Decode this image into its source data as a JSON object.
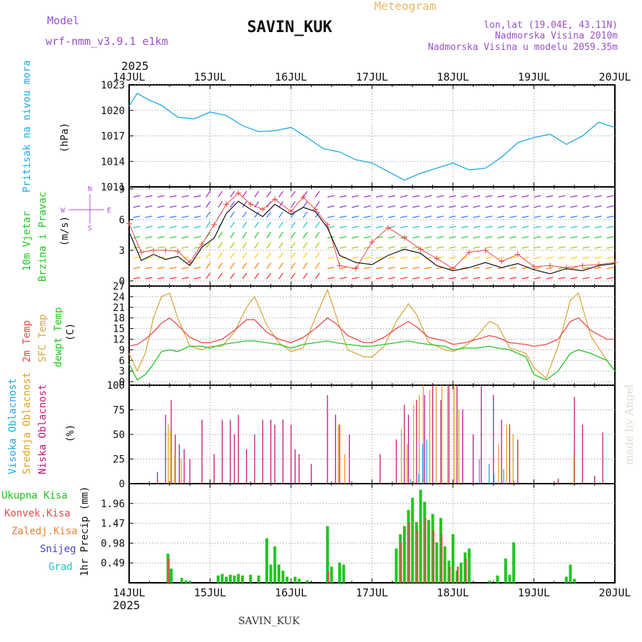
{
  "header": {
    "model_label": "Model",
    "model_name": "wrf-nmm_v3.9.1 e1km",
    "station_title": "SAVIN_KUK",
    "meteogram_label": "Meteogram",
    "lonlat": "lon,lat (19.04E, 43.11N)",
    "altitude": "Nadmorska Visina 2010m",
    "model_altitude": "Nadmorska Visina u modelu 2059.35m",
    "year_top": "2025",
    "year_bottom": "2025",
    "footer_station": "SAVIN_KUK",
    "watermark": "made by Angel"
  },
  "colors": {
    "pressure": "#1ea9e0",
    "wind_label": "#22c522",
    "dir_label": "#b44fd8",
    "temp2m": "#e84a4a",
    "sfc": "#d8a840",
    "dewpt": "#22c522",
    "high_cloud": "#21a9e0",
    "mid_cloud": "#e0a020",
    "low_cloud": "#c01878",
    "total_precip": "#22c522",
    "conv_precip": "#e84a4a",
    "frozen_precip": "#f08030",
    "snow": "#4040e0",
    "hail": "#20c0c0",
    "title_purple": "#9a50c8",
    "meteogram_orange": "#e8b868"
  },
  "chart_data": [
    {
      "type": "line",
      "id": "pressure",
      "ylabel_1": "Pritisak na nivou mora",
      "ylabel_2": "(hPa)",
      "ylim": [
        1011,
        1023
      ],
      "yticks": [
        1011,
        1014,
        1017,
        1020,
        1023
      ],
      "x_days": [
        "14JUL",
        "15JUL",
        "16JUL",
        "17JUL",
        "18JUL",
        "19JUL",
        "20JUL"
      ],
      "x": [
        0,
        0.1,
        0.25,
        0.4,
        0.6,
        0.8,
        1.0,
        1.2,
        1.4,
        1.6,
        1.8,
        2.0,
        2.2,
        2.4,
        2.6,
        2.8,
        3.0,
        3.2,
        3.4,
        3.6,
        3.8,
        4.0,
        4.2,
        4.4,
        4.6,
        4.8,
        5.0,
        5.2,
        5.4,
        5.6,
        5.8,
        6.0
      ],
      "y": [
        1020.5,
        1022.0,
        1021.2,
        1020.6,
        1019.2,
        1019.0,
        1019.8,
        1019.4,
        1018.2,
        1017.5,
        1017.6,
        1018.0,
        1016.8,
        1015.5,
        1015.1,
        1014.2,
        1013.8,
        1012.8,
        1011.8,
        1012.6,
        1013.2,
        1013.8,
        1013.0,
        1013.2,
        1014.5,
        1016.2,
        1016.8,
        1017.2,
        1016.0,
        1017.0,
        1018.6,
        1018.0
      ]
    },
    {
      "type": "line",
      "id": "wind",
      "ylabel_1": "10m Vjetar",
      "ylabel_2": "Brzina i Pravac",
      "ylabel_3": "(m/s)",
      "compass": {
        "n": "N",
        "s": "S",
        "w": "W",
        "e": "E"
      },
      "ylim": [
        -0.5,
        9.2
      ],
      "yticks": [
        0,
        3,
        6,
        9
      ],
      "x": [
        0,
        0.15,
        0.3,
        0.45,
        0.6,
        0.75,
        0.9,
        1.05,
        1.2,
        1.35,
        1.5,
        1.65,
        1.8,
        2.0,
        2.15,
        2.3,
        2.45,
        2.6,
        2.8,
        3.0,
        3.2,
        3.4,
        3.6,
        3.8,
        4.0,
        4.2,
        4.4,
        4.6,
        4.8,
        5.0,
        5.2,
        5.4,
        5.6,
        5.8,
        6.0
      ],
      "y_speed": [
        4.8,
        2.0,
        2.6,
        2.1,
        2.4,
        1.5,
        3.3,
        4.2,
        6.6,
        7.8,
        7.0,
        6.3,
        7.5,
        6.5,
        7.2,
        6.8,
        5.2,
        2.5,
        1.8,
        1.6,
        2.5,
        3.1,
        2.7,
        1.5,
        1.0,
        1.3,
        1.8,
        1.3,
        1.7,
        1.1,
        0.7,
        1.2,
        1.0,
        1.5,
        1.7
      ],
      "y_gust": [
        5.6,
        2.8,
        3.0,
        3.0,
        2.9,
        1.8,
        3.6,
        5.5,
        7.5,
        8.6,
        7.5,
        7.0,
        8.0,
        6.8,
        8.2,
        7.0,
        5.5,
        1.5,
        1.2,
        3.8,
        5.2,
        4.2,
        3.1,
        2.2,
        1.2,
        2.8,
        3.0,
        1.9,
        2.6,
        1.4,
        1.5,
        1.3,
        1.5,
        1.6,
        1.8
      ]
    },
    {
      "type": "line",
      "id": "temperature",
      "ylabel_1": "2m Temp",
      "ylabel_2": "SFC Temp",
      "ylabel_3": "dewpt Temp",
      "ylabel_4": "(C)",
      "ylim": [
        -1,
        27
      ],
      "yticks": [
        0,
        3,
        6,
        9,
        12,
        15,
        18,
        21,
        24,
        27
      ],
      "x": [
        0,
        0.1,
        0.2,
        0.3,
        0.4,
        0.5,
        0.6,
        0.75,
        0.9,
        1.0,
        1.15,
        1.3,
        1.45,
        1.55,
        1.7,
        1.85,
        2.0,
        2.15,
        2.3,
        2.45,
        2.55,
        2.7,
        2.9,
        3.0,
        3.15,
        3.3,
        3.45,
        3.55,
        3.7,
        3.9,
        4.0,
        4.15,
        4.3,
        4.45,
        4.55,
        4.7,
        4.9,
        5.0,
        5.15,
        5.3,
        5.45,
        5.55,
        5.7,
        5.9,
        6.0
      ],
      "t2m": [
        10,
        10.5,
        12,
        14,
        16.5,
        18,
        16,
        12.5,
        11,
        11,
        12,
        14.5,
        17.5,
        17.5,
        14,
        12,
        11,
        12.5,
        15,
        18,
        16.5,
        13,
        11,
        11,
        12.5,
        15,
        17,
        15.5,
        12.5,
        11.5,
        10.5,
        11,
        12,
        13,
        12.5,
        11,
        10.5,
        10,
        10.5,
        12,
        17,
        18,
        14.5,
        12,
        12
      ],
      "sfc": [
        8,
        3,
        8,
        18,
        24,
        25,
        18,
        10,
        9,
        10,
        10,
        14,
        21,
        24,
        16,
        11,
        8.5,
        9.5,
        18,
        26,
        19,
        9,
        7,
        7,
        10,
        17,
        22,
        19,
        11,
        9,
        8.5,
        10,
        13,
        17,
        16,
        9.5,
        8,
        4,
        1,
        10,
        23,
        25,
        13,
        6,
        3
      ],
      "dew": [
        5,
        0.5,
        2,
        5,
        8.5,
        9,
        8.5,
        10,
        10,
        9.5,
        10.5,
        11,
        11.5,
        11.5,
        11,
        10.5,
        9.5,
        10.5,
        11,
        11.5,
        11,
        10.5,
        10,
        10,
        10.5,
        11,
        11.5,
        11,
        10.5,
        10,
        9,
        9.5,
        9.5,
        10,
        9.5,
        9,
        7,
        2,
        0.5,
        3,
        8,
        9,
        8,
        6,
        3
      ]
    },
    {
      "type": "bar",
      "id": "clouds",
      "ylabel_1": "Visoka Oblacnost",
      "ylabel_2": "Srednja Oblacnost",
      "ylabel_3": "Niska Oblacnost",
      "ylabel_4": "(%)",
      "ylim": [
        0,
        100
      ],
      "yticks": [
        0,
        25,
        50,
        75,
        100
      ],
      "series": [
        {
          "name": "Niska Oblacnost",
          "x": [
            0.35,
            0.45,
            0.52,
            0.57,
            0.62,
            0.68,
            0.75,
            0.9,
            1.05,
            1.15,
            1.25,
            1.3,
            1.35,
            1.45,
            1.55,
            1.65,
            1.75,
            1.8,
            1.9,
            2.0,
            2.05,
            2.1,
            2.25,
            2.45,
            2.55,
            2.6,
            2.72,
            3.1,
            3.3,
            3.4,
            3.45,
            3.55,
            3.65,
            3.75,
            3.85,
            3.95,
            4.05,
            4.12,
            4.25,
            4.35,
            4.5,
            4.6,
            4.7,
            4.8,
            5.3,
            5.5,
            5.6,
            5.75,
            5.85
          ],
          "values": [
            12,
            70,
            85,
            50,
            40,
            35,
            25,
            65,
            30,
            65,
            65,
            50,
            70,
            35,
            50,
            65,
            65,
            60,
            65,
            60,
            35,
            30,
            20,
            90,
            70,
            60,
            50,
            30,
            45,
            80,
            70,
            85,
            90,
            100,
            85,
            100,
            100,
            75,
            50,
            100,
            90,
            65,
            60,
            45,
            5,
            88,
            60,
            8,
            52
          ]
        },
        {
          "name": "Srednja Oblacnost",
          "x": [
            0.47,
            0.5,
            0.55,
            0.63,
            2.57,
            2.65,
            3.35,
            3.42,
            3.5,
            3.57,
            3.62,
            3.7,
            3.78,
            3.85,
            3.92,
            4.0,
            4.06,
            4.55,
            4.65,
            4.73,
            5.48
          ],
          "values": [
            60,
            55,
            30,
            25,
            60,
            30,
            55,
            40,
            80,
            90,
            100,
            95,
            100,
            100,
            100,
            100,
            75,
            40,
            60,
            50,
            30
          ]
        },
        {
          "name": "Visoka Oblacnost",
          "x": [
            3.45,
            3.55,
            3.6,
            3.65,
            4.3,
            4.42,
            4.48,
            4.6
          ],
          "values": [
            5,
            10,
            40,
            45,
            25,
            20,
            10,
            15
          ]
        }
      ]
    },
    {
      "type": "bar",
      "id": "precip",
      "ylabel_1": "Ukupna Kisa",
      "ylabel_2": "Konvek.Kisa",
      "ylabel_3": "Zaledj.Kisa",
      "ylabel_4": "Snijeg",
      "ylabel_5": "Grad",
      "ylabel_6": "1hr Precip (mm)",
      "ylim": [
        0,
        2.45
      ],
      "yticks": [
        0.49,
        0.98,
        1.47,
        1.96
      ],
      "yticklabels": [
        "0.49",
        "0.98",
        "1.47",
        "1.96"
      ],
      "series": [
        {
          "name": "Ukupna Kisa",
          "x": [
            0.48,
            0.52,
            0.65,
            0.7,
            0.75,
            1.1,
            1.15,
            1.2,
            1.25,
            1.3,
            1.35,
            1.4,
            1.5,
            1.6,
            1.7,
            1.75,
            1.8,
            1.85,
            1.9,
            1.95,
            2.05,
            2.1,
            2.2,
            2.45,
            2.5,
            2.6,
            2.65,
            3.3,
            3.35,
            3.4,
            3.45,
            3.5,
            3.55,
            3.6,
            3.65,
            3.7,
            3.75,
            3.8,
            3.85,
            3.9,
            3.95,
            4.0,
            4.05,
            4.1,
            4.15,
            4.2,
            4.45,
            4.55,
            4.65,
            4.7,
            4.75,
            5.4,
            5.45,
            5.5
          ],
          "values": [
            0.72,
            0.35,
            0.12,
            0.06,
            0.05,
            0.18,
            0.22,
            0.15,
            0.2,
            0.18,
            0.22,
            0.18,
            0.2,
            0.18,
            1.1,
            0.45,
            0.9,
            0.45,
            0.3,
            0.15,
            0.15,
            0.1,
            0.06,
            1.4,
            0.4,
            0.5,
            0.45,
            0.85,
            1.2,
            1.4,
            1.8,
            2.1,
            1.5,
            2.3,
            2.0,
            1.55,
            1.7,
            1.0,
            1.6,
            0.9,
            0.55,
            1.2,
            0.3,
            0.5,
            0.75,
            0.85,
            0.05,
            0.18,
            0.6,
            0.2,
            1.0,
            0.15,
            0.45,
            0.1
          ]
        },
        {
          "name": "Konvek.Kisa",
          "x": [
            0.49,
            2.46,
            3.36,
            3.46,
            3.56,
            3.66,
            3.76,
            3.86,
            3.96,
            4.06,
            4.16
          ],
          "values": [
            0.6,
            0.3,
            1.0,
            1.5,
            1.3,
            1.6,
            1.3,
            1.2,
            0.4,
            0.4,
            0.6
          ]
        }
      ]
    }
  ]
}
